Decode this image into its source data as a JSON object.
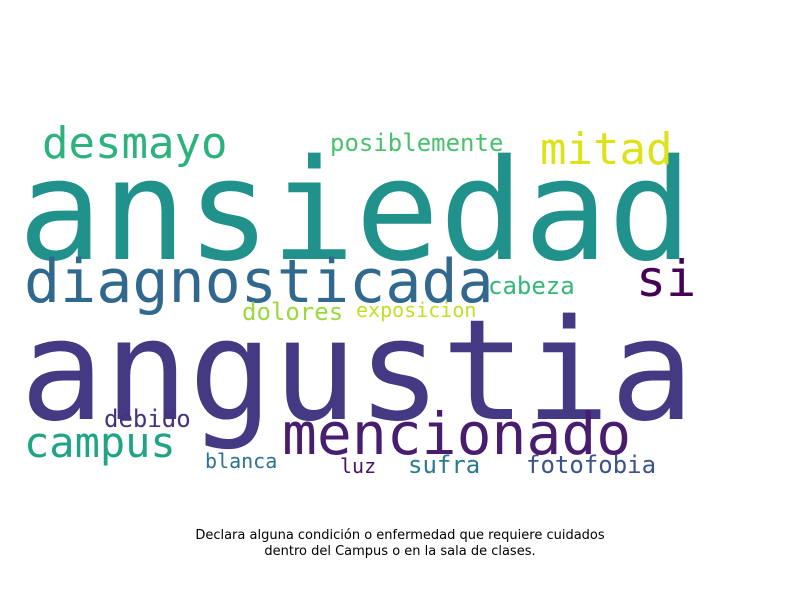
{
  "words": [
    {
      "text": "ansiedad",
      "color": "#21918c"
    },
    {
      "text": "angustia",
      "color": "#443983"
    },
    {
      "text": "diagnosticada",
      "color": "#31688e"
    },
    {
      "text": "mencionado",
      "color": "#481c6e"
    },
    {
      "text": "desmayo",
      "color": "#2db27d"
    },
    {
      "text": "mitad",
      "color": "#dde318"
    },
    {
      "text": "si",
      "color": "#440154"
    },
    {
      "text": "campus",
      "color": "#20a486"
    },
    {
      "text": "posiblemente",
      "color": "#4ac16d"
    },
    {
      "text": "cabeza",
      "color": "#35b779"
    },
    {
      "text": "dolores",
      "color": "#9bd93c"
    },
    {
      "text": "exposicion",
      "color": "#c2df23"
    },
    {
      "text": "debido",
      "color": "#46327e"
    },
    {
      "text": "blanca",
      "color": "#2c728e"
    },
    {
      "text": "luz",
      "color": "#481467"
    },
    {
      "text": "sufra",
      "color": "#287c8e"
    },
    {
      "text": "fotofobia",
      "color": "#3b528b"
    }
  ],
  "caption": {
    "line1": "Declara alguna condición o enfermedad que requiere cuidados",
    "line2": "dentro del Campus o en la sala de clases."
  }
}
